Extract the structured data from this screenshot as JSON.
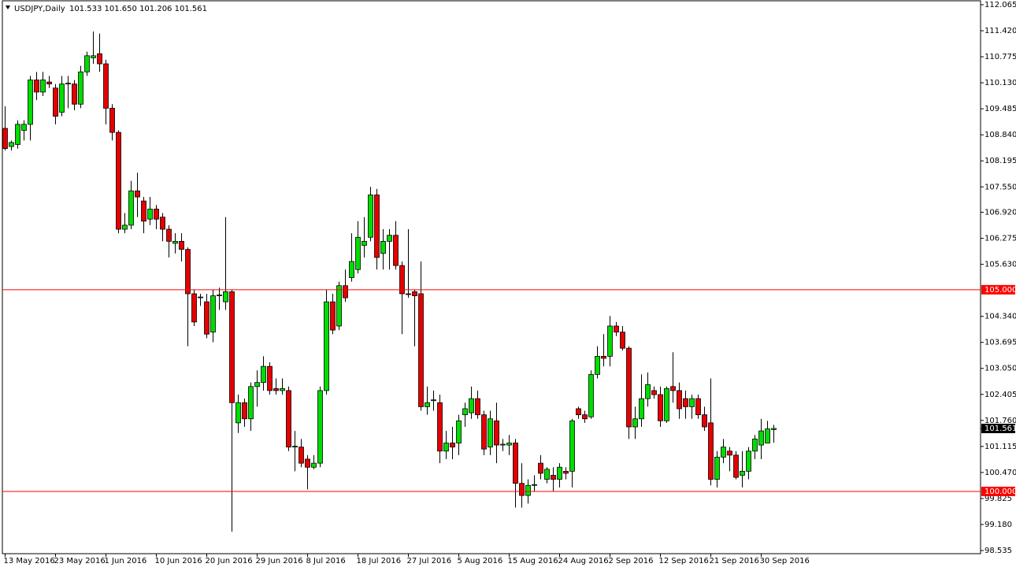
{
  "chart_data": {
    "type": "candlestick",
    "header": {
      "symbol": "USDJPY,Daily",
      "quote": "101.533 101.650 101.206 101.561"
    },
    "categories": [
      "13 May 2016",
      null,
      null,
      null,
      null,
      null,
      null,
      null,
      "23 May 2016",
      null,
      null,
      null,
      null,
      null,
      null,
      null,
      "1 Jun 2016",
      null,
      null,
      null,
      null,
      null,
      null,
      null,
      "10 Jun 2016",
      null,
      null,
      null,
      null,
      null,
      null,
      null,
      "20 Jun 2016",
      null,
      null,
      null,
      null,
      null,
      null,
      null,
      "29 Jun 2016",
      null,
      null,
      null,
      null,
      null,
      null,
      null,
      "8 Jul 2016",
      null,
      null,
      null,
      null,
      null,
      null,
      null,
      "18 Jul 2016",
      null,
      null,
      null,
      null,
      null,
      null,
      null,
      "27 Jul 2016",
      null,
      null,
      null,
      null,
      null,
      null,
      null,
      "5 Aug 2016",
      null,
      null,
      null,
      null,
      null,
      null,
      null,
      "15 Aug 2016",
      null,
      null,
      null,
      null,
      null,
      null,
      null,
      "24 Aug 2016",
      null,
      null,
      null,
      null,
      null,
      null,
      null,
      "2 Sep 2016",
      null,
      null,
      null,
      null,
      null,
      null,
      null,
      "12 Sep 2016",
      null,
      null,
      null,
      null,
      null,
      null,
      null,
      "21 Sep 2016",
      null,
      null,
      null,
      null,
      null,
      null,
      null,
      "30 Sep 2016",
      null,
      null
    ],
    "open": [
      109.0,
      108.55,
      108.6,
      108.95,
      109.1,
      110.2,
      109.9,
      110.15,
      110.0,
      109.4,
      110.1,
      110.1,
      109.6,
      110.4,
      110.75,
      110.85,
      110.6,
      109.5,
      108.9,
      106.5,
      106.6,
      107.45,
      107.2,
      106.75,
      107.0,
      106.8,
      106.5,
      106.15,
      106.2,
      106.0,
      104.9,
      104.8,
      104.7,
      103.95,
      104.85,
      104.7,
      104.95,
      101.7,
      102.2,
      101.8,
      102.6,
      102.7,
      103.1,
      102.55,
      102.5,
      102.5,
      101.1,
      101.1,
      100.8,
      100.6,
      100.7,
      102.5,
      104.7,
      104.1,
      105.1,
      105.3,
      105.5,
      106.1,
      106.3,
      107.35,
      105.9,
      106.2,
      106.35,
      105.6,
      104.9,
      104.95,
      104.9,
      102.1,
      102.25,
      102.2,
      101.0,
      101.2,
      101.2,
      101.9,
      101.95,
      102.3,
      101.9,
      101.1,
      101.75,
      101.15,
      101.15,
      101.2,
      100.2,
      99.9,
      100.15,
      100.7,
      100.3,
      100.4,
      100.3,
      100.5,
      100.5,
      102.05,
      101.9,
      101.85,
      102.9,
      103.35,
      103.35,
      104.1,
      103.95,
      103.55,
      101.6,
      101.8,
      102.3,
      102.5,
      102.4,
      101.75,
      102.6,
      102.5,
      102.3,
      102.1,
      102.3,
      101.9,
      101.7,
      100.3,
      100.85,
      101.0,
      100.9,
      100.4,
      100.5,
      101.0,
      101.15,
      101.2,
      101.533
    ],
    "high": [
      109.55,
      108.7,
      109.2,
      109.2,
      110.3,
      110.4,
      110.4,
      110.3,
      110.1,
      110.3,
      110.3,
      110.2,
      110.55,
      110.9,
      111.4,
      111.35,
      110.7,
      109.6,
      108.95,
      106.9,
      107.7,
      107.9,
      107.3,
      107.3,
      107.1,
      106.9,
      106.6,
      106.4,
      106.4,
      106.05,
      105.0,
      104.9,
      104.9,
      105.0,
      105.05,
      106.8,
      105.0,
      102.4,
      102.3,
      102.7,
      103.0,
      103.35,
      103.2,
      102.8,
      102.8,
      102.6,
      101.5,
      101.3,
      100.9,
      100.9,
      102.6,
      105.0,
      104.9,
      105.2,
      105.5,
      106.4,
      106.7,
      106.8,
      107.55,
      107.5,
      106.5,
      106.5,
      106.7,
      105.7,
      106.5,
      105.0,
      105.7,
      102.6,
      102.5,
      102.4,
      101.5,
      101.6,
      101.9,
      102.2,
      102.6,
      102.5,
      102.0,
      102.0,
      102.2,
      101.3,
      101.4,
      101.3,
      100.7,
      100.3,
      100.4,
      100.9,
      100.6,
      100.6,
      100.7,
      100.6,
      101.8,
      102.1,
      102.0,
      103.0,
      103.6,
      103.9,
      104.35,
      104.2,
      104.1,
      103.6,
      102.1,
      102.9,
      102.95,
      102.6,
      102.6,
      102.6,
      103.45,
      102.7,
      102.5,
      102.4,
      102.4,
      102.1,
      102.8,
      101.0,
      101.3,
      101.1,
      101.0,
      101.0,
      101.1,
      101.4,
      101.8,
      101.75,
      101.65
    ],
    "low": [
      108.45,
      108.45,
      108.5,
      108.7,
      108.7,
      109.7,
      109.8,
      110.0,
      109.1,
      109.3,
      109.5,
      109.45,
      109.5,
      110.3,
      110.6,
      110.4,
      109.1,
      108.7,
      106.4,
      106.4,
      106.5,
      106.8,
      106.4,
      106.6,
      106.5,
      106.2,
      105.8,
      105.9,
      105.7,
      103.6,
      104.1,
      104.6,
      103.8,
      103.7,
      104.5,
      104.5,
      99.0,
      101.45,
      101.6,
      101.5,
      102.1,
      102.5,
      102.4,
      102.4,
      102.4,
      101.0,
      100.5,
      100.6,
      100.05,
      100.55,
      100.6,
      102.4,
      103.9,
      104.0,
      104.7,
      105.2,
      105.4,
      105.8,
      106.2,
      105.5,
      105.5,
      105.5,
      105.5,
      103.9,
      104.8,
      103.6,
      102.0,
      101.9,
      102.0,
      100.7,
      100.8,
      100.8,
      100.9,
      101.6,
      101.8,
      101.8,
      100.9,
      100.9,
      100.7,
      101.0,
      100.9,
      99.6,
      99.6,
      99.7,
      100.0,
      100.3,
      100.2,
      100.0,
      100.1,
      100.3,
      100.1,
      101.8,
      101.7,
      101.8,
      102.8,
      103.1,
      103.1,
      103.85,
      103.5,
      101.3,
      101.3,
      101.6,
      102.1,
      102.3,
      101.6,
      101.7,
      102.2,
      101.8,
      101.8,
      101.8,
      101.8,
      101.5,
      100.15,
      100.1,
      100.7,
      100.5,
      100.3,
      100.1,
      100.3,
      100.8,
      100.8,
      101.2,
      101.206
    ],
    "close": [
      108.5,
      108.65,
      109.1,
      109.1,
      110.2,
      109.9,
      110.2,
      110.1,
      109.3,
      110.1,
      110.12,
      109.6,
      110.4,
      110.8,
      110.8,
      110.6,
      109.5,
      108.9,
      106.5,
      106.6,
      107.45,
      107.3,
      106.7,
      107.0,
      106.75,
      106.5,
      106.2,
      106.2,
      106.0,
      104.9,
      104.2,
      104.82,
      103.9,
      104.85,
      104.87,
      104.95,
      102.2,
      102.2,
      101.8,
      102.6,
      102.7,
      103.1,
      102.5,
      102.5,
      102.55,
      101.1,
      101.12,
      100.7,
      100.6,
      100.7,
      102.5,
      104.7,
      104.0,
      105.1,
      104.8,
      105.7,
      106.3,
      106.2,
      107.35,
      105.8,
      106.2,
      106.35,
      105.6,
      104.9,
      104.88,
      104.85,
      102.1,
      102.2,
      102.27,
      101.0,
      101.2,
      101.1,
      101.75,
      102.05,
      102.3,
      101.9,
      101.05,
      101.8,
      101.15,
      101.17,
      101.2,
      100.2,
      99.9,
      100.15,
      100.17,
      100.45,
      100.55,
      100.3,
      100.6,
      100.45,
      101.75,
      101.9,
      101.8,
      102.9,
      103.35,
      103.3,
      104.1,
      103.95,
      103.55,
      101.6,
      101.8,
      102.3,
      102.65,
      102.4,
      101.75,
      102.55,
      102.5,
      102.05,
      102.1,
      102.3,
      101.9,
      101.6,
      100.3,
      100.85,
      101.1,
      100.9,
      100.35,
      100.5,
      101.0,
      101.3,
      101.5,
      101.55,
      101.561
    ],
    "up_color": "#00dd00",
    "down_color": "#e60000",
    "ylim": [
      98.535,
      112.065
    ],
    "yticks": [
      112.065,
      {
        "value": 111.42,
        "label": "111.420"
      },
      110.775,
      {
        "value": 110.13,
        "label": "110.130"
      },
      109.485,
      {
        "value": 108.84,
        "label": "108.840"
      },
      108.195,
      {
        "value": 107.55,
        "label": "107.550"
      },
      {
        "value": 106.92,
        "label": "106.920"
      },
      106.275,
      {
        "value": 105.63,
        "label": "105.630"
      },
      {
        "value": 104.34,
        "label": "104.340"
      },
      103.695,
      {
        "value": 103.05,
        "label": "103.050"
      },
      102.405,
      {
        "value": 101.76,
        "label": "101.760"
      },
      101.115,
      {
        "value": 100.47,
        "label": "100.470"
      },
      99.825,
      {
        "value": 99.18,
        "label": "99.180"
      },
      98.535
    ],
    "horizontal_lines": [
      {
        "value": 105,
        "label": "105.000"
      },
      {
        "value": 100,
        "label": "100.000"
      }
    ],
    "line_color": "#ff0000"
  }
}
